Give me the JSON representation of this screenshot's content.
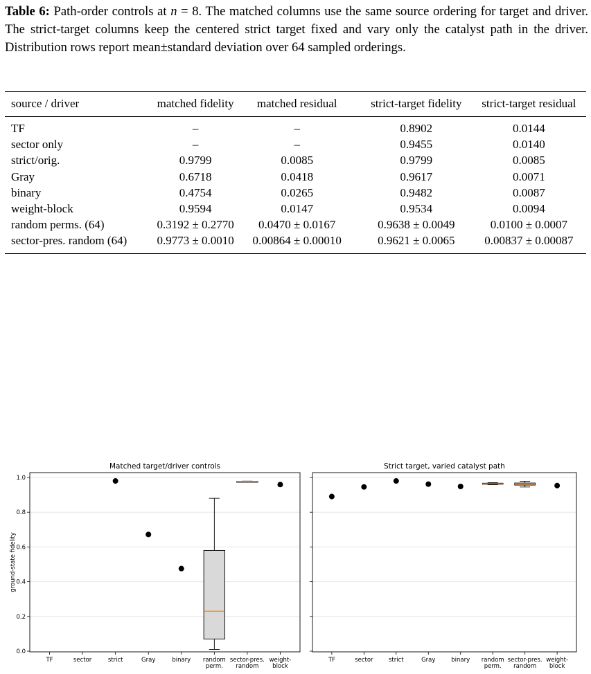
{
  "caption": {
    "label": "Table 6:",
    "before_n": "Path-order controls at ",
    "n_symbol": "n",
    "after_n": " = 8. The matched columns use the same source ordering for target and driver. The strict-target columns keep the centered strict target fixed and vary only the catalyst path in the driver. Distribution rows report mean±standard deviation over 64 sampled orderings."
  },
  "table": {
    "headers": [
      "source / driver",
      "matched fidelity",
      "matched residual",
      "strict-target fidelity",
      "strict-target residual"
    ],
    "rows": [
      [
        "TF",
        "–",
        "–",
        "0.8902",
        "0.0144"
      ],
      [
        "sector only",
        "–",
        "–",
        "0.9455",
        "0.0140"
      ],
      [
        "strict/orig.",
        "0.9799",
        "0.0085",
        "0.9799",
        "0.0085"
      ],
      [
        "Gray",
        "0.6718",
        "0.0418",
        "0.9617",
        "0.0071"
      ],
      [
        "binary",
        "0.4754",
        "0.0265",
        "0.9482",
        "0.0087"
      ],
      [
        "weight-block",
        "0.9594",
        "0.0147",
        "0.9534",
        "0.0094"
      ],
      [
        "random perms. (64)",
        "0.3192 ± 0.2770",
        "0.0470 ± 0.0167",
        "0.9638 ± 0.0049",
        "0.0100 ± 0.0007"
      ],
      [
        "sector-pres. random (64)",
        "0.9773 ± 0.0010",
        "0.00864 ± 0.00010",
        "0.9621 ± 0.0065",
        "0.00837 ± 0.00087"
      ]
    ]
  },
  "chart_data": [
    {
      "type": "scatter",
      "title": "Matched target/driver controls",
      "ylabel": "ground-state fidelity",
      "xlabel": "",
      "ylim": [
        0,
        1.0
      ],
      "yticks": [
        "0.0",
        "0.2",
        "0.4",
        "0.6",
        "0.8",
        "1.0"
      ],
      "grid": "y",
      "categories": [
        "TF",
        "sector",
        "strict",
        "Gray",
        "binary",
        "random\nperm.",
        "sector-pres.\nrandom",
        "weight-\nblock"
      ],
      "points": [
        {
          "category": "strict",
          "value": 0.9799
        },
        {
          "category": "Gray",
          "value": 0.6718
        },
        {
          "category": "binary",
          "value": 0.4754
        },
        {
          "category": "weight-\nblock",
          "value": 0.9594
        }
      ],
      "boxes": [
        {
          "category": "random\nperm.",
          "whisker_low": 0.01,
          "q1": 0.07,
          "median": 0.23,
          "q3": 0.58,
          "whisker_high": 0.88,
          "fill": "#d9d9d9"
        },
        {
          "category": "sector-pres.\nrandom",
          "whisker_low": 0.975,
          "q1": 0.9765,
          "median": 0.9775,
          "q3": 0.9782,
          "whisker_high": 0.979,
          "fill": "#d9d9d9"
        }
      ],
      "colors": {
        "point": "#000000",
        "median": "#ff7f0e",
        "box_fill": "#d9d9d9",
        "grid": "#e5e5e5"
      }
    },
    {
      "type": "scatter",
      "title": "Strict target, varied catalyst path",
      "ylabel": "",
      "xlabel": "",
      "ylim": [
        0,
        1.0
      ],
      "yticks": [
        "0.0",
        "0.2",
        "0.4",
        "0.6",
        "0.8",
        "1.0"
      ],
      "grid": "y",
      "categories": [
        "TF",
        "sector",
        "strict",
        "Gray",
        "binary",
        "random\nperm.",
        "sector-pres.\nrandom",
        "weight-\nblock"
      ],
      "points": [
        {
          "category": "TF",
          "value": 0.8902
        },
        {
          "category": "sector",
          "value": 0.9455
        },
        {
          "category": "strict",
          "value": 0.9799
        },
        {
          "category": "Gray",
          "value": 0.9617
        },
        {
          "category": "binary",
          "value": 0.9482
        },
        {
          "category": "weight-\nblock",
          "value": 0.9534
        }
      ],
      "boxes": [
        {
          "category": "random\nperm.",
          "whisker_low": 0.958,
          "q1": 0.961,
          "median": 0.964,
          "q3": 0.967,
          "whisker_high": 0.97,
          "fill": "#d9d9d9"
        },
        {
          "category": "sector-pres.\nrandom",
          "whisker_low": 0.945,
          "q1": 0.956,
          "median": 0.962,
          "q3": 0.968,
          "whisker_high": 0.978,
          "fill": "#d9d9d9"
        }
      ],
      "colors": {
        "point": "#000000",
        "median": "#ff7f0e",
        "box_fill": "#d9d9d9",
        "grid": "#e5e5e5"
      }
    }
  ]
}
